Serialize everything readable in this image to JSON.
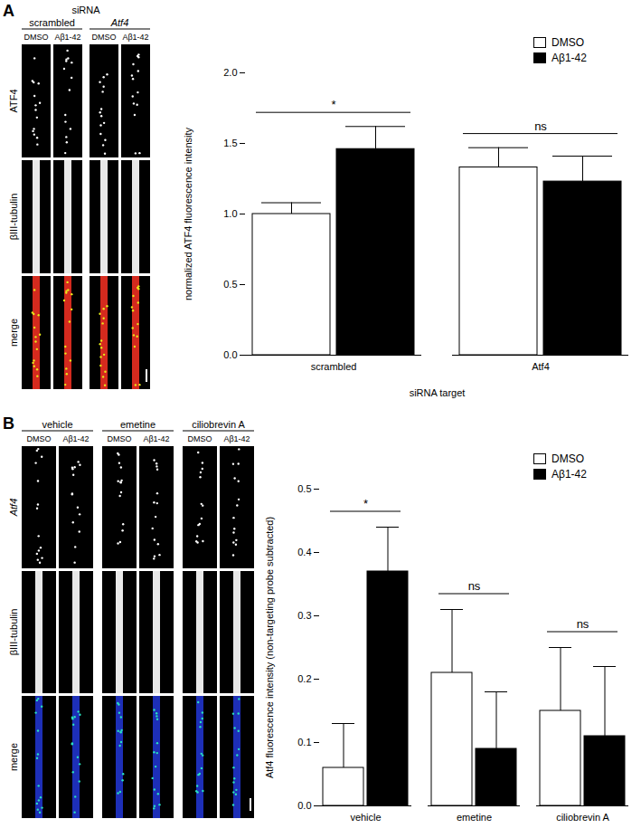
{
  "chart_data": [
    {
      "type": "bar",
      "categories": [
        "scrambled",
        "Atf4"
      ],
      "series": [
        {
          "name": "DMSO",
          "color": "#ffffff",
          "values": [
            1.0,
            1.33
          ],
          "errors": [
            0.08,
            0.14
          ]
        },
        {
          "name": "Aβ1-42",
          "color": "#000000",
          "values": [
            1.46,
            1.23
          ],
          "errors": [
            0.16,
            0.18
          ]
        }
      ],
      "ylim": [
        0,
        2
      ],
      "yticks": [
        {
          "value": 0,
          "label": "0.0"
        },
        0.5,
        {
          "value": 1,
          "label": "1.0"
        },
        1.5,
        {
          "value": 2,
          "label": "2.0"
        }
      ],
      "ylabel": "normalized ATF4 fluorescence intensity",
      "xlabel": "siRNA target",
      "legend": "top-right",
      "annotations": [
        {
          "category": "scrambled",
          "text": "*"
        },
        {
          "category": "Atf4",
          "text": "ns"
        }
      ]
    },
    {
      "type": "bar",
      "categories": [
        "vehicle",
        "emetine",
        "ciliobrevin A"
      ],
      "series": [
        {
          "name": "DMSO",
          "color": "#ffffff",
          "values": [
            0.06,
            0.21,
            0.15
          ],
          "errors": [
            0.07,
            0.1,
            0.1
          ]
        },
        {
          "name": "Aβ1-42",
          "color": "#000000",
          "values": [
            0.37,
            0.09,
            0.11
          ],
          "errors": [
            0.07,
            0.09,
            0.11
          ]
        }
      ],
      "ylim": [
        0,
        0.5
      ],
      "yticks": [
        {
          "value": 0,
          "label": "0.0"
        },
        0.1,
        0.2,
        0.3,
        0.4,
        0.5
      ],
      "ylabel": "Atf4 fluorescence intensity (non-targeting probe subtracted)",
      "legend": "top-right",
      "annotations": [
        {
          "category": "vehicle",
          "text": "*"
        },
        {
          "category": "emetine",
          "text": "ns"
        },
        {
          "category": "ciliobrevin A",
          "text": "ns"
        }
      ]
    }
  ],
  "panels": [
    {
      "letter": "A",
      "header": "siRNA",
      "groups": [
        {
          "name": "scrambled",
          "columns": [
            "DMSO",
            "Aβ1-42"
          ]
        },
        {
          "name": "Atf4",
          "columns": [
            "DMSO",
            "Aβ1-42"
          ]
        }
      ],
      "rows": [
        "ATF4",
        "βIII-tubulin",
        "merge"
      ]
    },
    {
      "letter": "B",
      "groups": [
        {
          "name": "vehicle",
          "columns": [
            "DMSO",
            "Aβ1-42"
          ]
        },
        {
          "name": "emetine",
          "columns": [
            "DMSO",
            "Aβ1-42"
          ]
        },
        {
          "name": "ciliobrevin A",
          "columns": [
            "DMSO",
            "Aβ1-42"
          ]
        }
      ],
      "rows": [
        "Atf4",
        "βIII-tubulin",
        "merge"
      ]
    }
  ]
}
